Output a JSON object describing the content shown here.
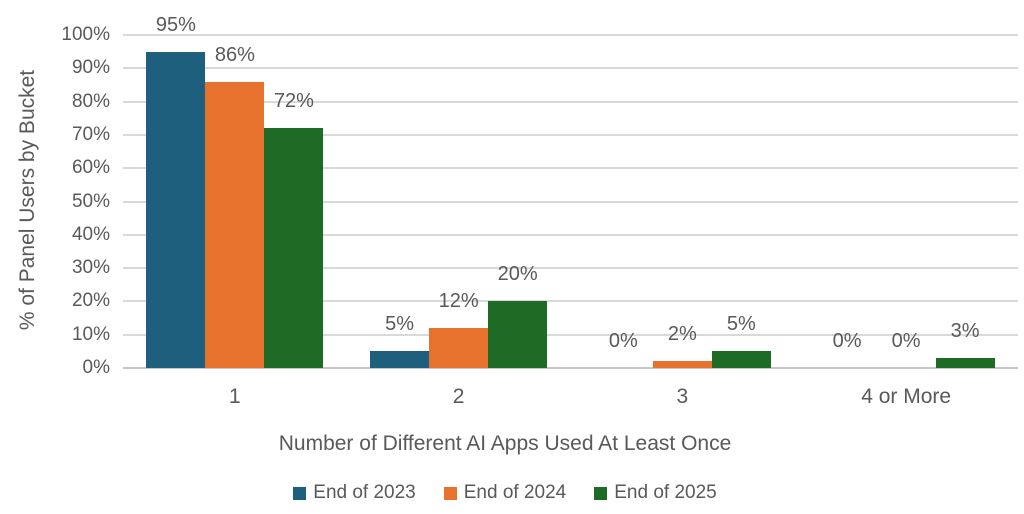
{
  "chart_data": {
    "type": "bar",
    "title": "",
    "categories": [
      "1",
      "2",
      "3",
      "4 or More"
    ],
    "series": [
      {
        "name": "End of 2023",
        "color": "#1E5F7E",
        "values": [
          95,
          5,
          0,
          0
        ]
      },
      {
        "name": "End of 2024",
        "color": "#E6722E",
        "values": [
          86,
          12,
          2,
          0
        ]
      },
      {
        "name": "End of 2025",
        "color": "#1E6B26",
        "values": [
          72,
          20,
          5,
          3
        ]
      }
    ],
    "xlabel": "Number of Different AI Apps Used At Least Once",
    "ylabel": "% of Panel Users by Bucket",
    "ylim": [
      0,
      100
    ],
    "ytick_step": 10,
    "ytick_labels": [
      "0%",
      "10%",
      "20%",
      "30%",
      "40%",
      "50%",
      "60%",
      "70%",
      "80%",
      "90%",
      "100%"
    ],
    "data_label_suffix": "%",
    "grid": true,
    "legend_position": "bottom",
    "colors": {
      "gridline": "#D9D9D9",
      "axis_line": "#C6C6C6",
      "text": "#595959",
      "background": "#FFFFFF"
    }
  }
}
